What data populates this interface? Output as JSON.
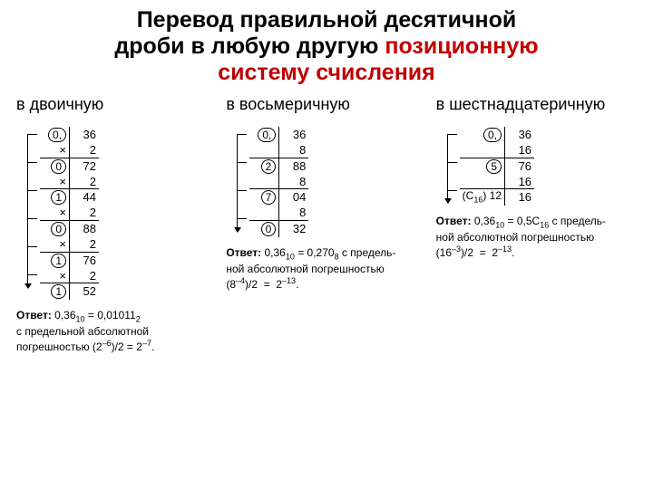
{
  "title_line1": "Перевод правильной десятичной",
  "title_line2_black": "дроби в любую другую ",
  "title_line2_red": "позиционную",
  "title_line3_red": "систему счисления",
  "columns": {
    "binary": {
      "head": "в двоичную",
      "rows": [
        {
          "d": "0,",
          "a": "36"
        },
        {
          "x": "×",
          "a": "2"
        },
        {
          "d": "0",
          "a": "72",
          "top": true
        },
        {
          "x": "×",
          "a": "2"
        },
        {
          "d": "1",
          "a": "44",
          "top": true
        },
        {
          "x": "×",
          "a": "2"
        },
        {
          "d": "0",
          "a": "88",
          "top": true
        },
        {
          "x": "×",
          "a": "2"
        },
        {
          "d": "1",
          "a": "76",
          "top": true
        },
        {
          "x": "×",
          "a": "2"
        },
        {
          "d": "1",
          "a": "52",
          "top": true
        }
      ],
      "arrow_h": 170,
      "answer_html": "<b>Ответ:</b> 0,36<span class='sub'>10</span> = 0,01011<span class='sub'>2</span><br>с предельной абсолютной<br>погрешностью (2<span class='sup'>–6</span>)/2 = 2<span class='sup'>–7</span>."
    },
    "octal": {
      "head": "в восьмеричную",
      "rows": [
        {
          "d": "0,",
          "a": "36"
        },
        {
          "x": "",
          "a": "8"
        },
        {
          "d": "2",
          "a": "88",
          "top": true
        },
        {
          "x": "",
          "a": "8"
        },
        {
          "d": "7",
          "a": "04",
          "top": true
        },
        {
          "x": "",
          "a": "8"
        },
        {
          "d": "0",
          "a": "32",
          "top": true
        }
      ],
      "arrow_h": 108,
      "answer_html": "<b>Ответ:</b> 0,36<span class='sub'>10</span> = 0,270<span class='sub'>8</span> с предель-<br>ной абсолютной погрешностью<br>(8<span class='sup'>–4</span>)/2 &nbsp;=&nbsp; 2<span class='sup'>–13</span>."
    },
    "hex": {
      "head": "в шестнадцатеричную",
      "rows": [
        {
          "d": "0,",
          "a": "36"
        },
        {
          "x": "",
          "a": "16"
        },
        {
          "d": "5",
          "a": "76",
          "top": true
        },
        {
          "x": "",
          "a": "16"
        },
        {
          "d": "(C<span class='sub'>16</span>) 12",
          "a": "16",
          "top": true,
          "noc": true
        }
      ],
      "arrow_h": 76,
      "answer_html": "<b>Ответ:</b> 0,36<span class='sub'>10</span> = 0,5C<span class='sub'>16</span> с предель-<br>ной абсолютной погрешностью<br>(16<span class='sup'>–3</span>)/2 &nbsp;=&nbsp; 2<span class='sup'>–13</span>."
    }
  }
}
